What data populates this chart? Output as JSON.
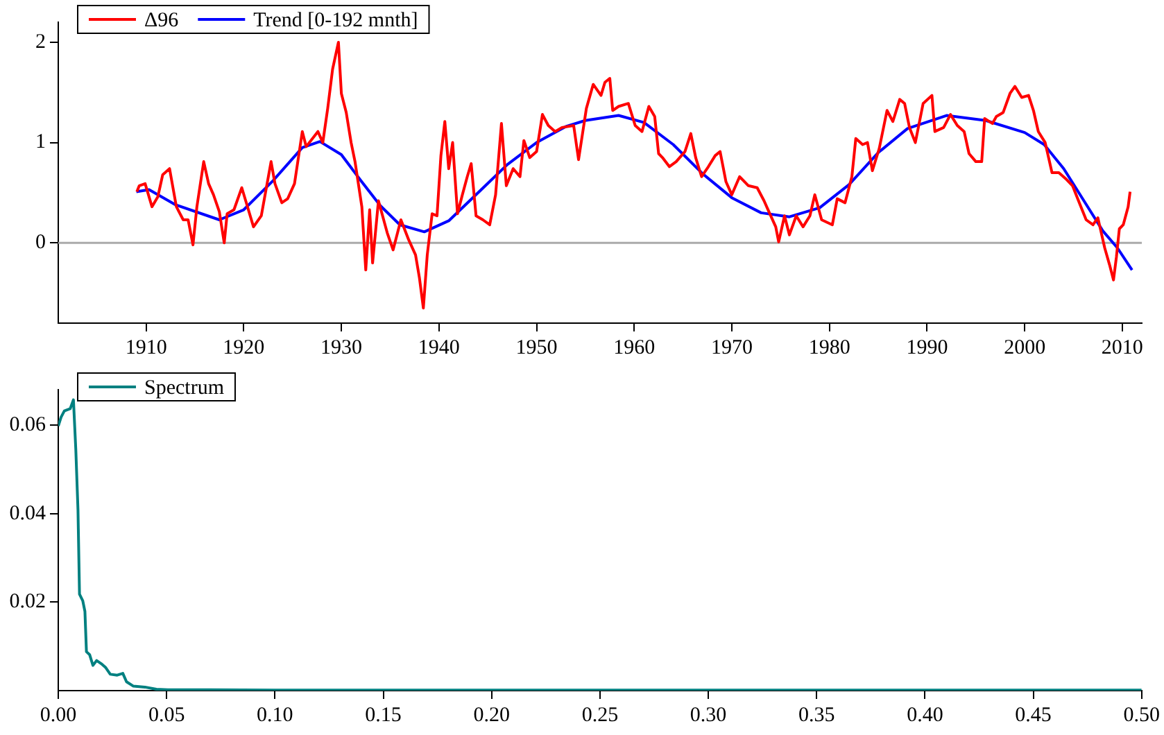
{
  "chart_data": [
    {
      "type": "line",
      "xlim": [
        1901,
        2012
      ],
      "xticks": [
        1910,
        1920,
        1930,
        1940,
        1950,
        1960,
        1970,
        1980,
        1990,
        2000,
        2010
      ],
      "ylim": [
        -0.8,
        2.2
      ],
      "yticks": [
        0,
        1,
        2
      ],
      "grid": false,
      "legend": "top left",
      "marker": "none",
      "ref_lines": [
        {
          "axis": "y",
          "value": 0,
          "color": "#aaaaaa"
        }
      ],
      "series": [
        {
          "name": "Δ96",
          "color": "#ff0000",
          "x": [
            1909.05,
            1909.3,
            1909.9,
            1910.6,
            1911.2,
            1911.7,
            1912.4,
            1913.1,
            1913.8,
            1914.3,
            1914.8,
            1915.2,
            1915.9,
            1916.4,
            1916.9,
            1917.5,
            1918.0,
            1918.3,
            1919.0,
            1919.8,
            1920.2,
            1921.0,
            1921.8,
            1922.8,
            1923.2,
            1923.9,
            1924.5,
            1925.2,
            1926.0,
            1926.4,
            1927.6,
            1928.1,
            1928.6,
            1929.1,
            1929.7,
            1930.0,
            1930.5,
            1931.0,
            1931.4,
            1932.1,
            1932.5,
            1932.9,
            1933.2,
            1933.8,
            1934.7,
            1935.3,
            1936.1,
            1936.9,
            1937.6,
            1938.0,
            1938.4,
            1938.8,
            1939.3,
            1939.8,
            1940.2,
            1940.6,
            1941.0,
            1941.4,
            1941.9,
            1942.4,
            1942.9,
            1943.3,
            1943.8,
            1944.5,
            1945.2,
            1945.8,
            1946.4,
            1946.9,
            1947.6,
            1948.3,
            1948.7,
            1949.3,
            1950.0,
            1950.6,
            1951.2,
            1951.9,
            1952.6,
            1953.8,
            1954.3,
            1955.1,
            1955.8,
            1956.6,
            1957.0,
            1957.5,
            1957.8,
            1958.4,
            1959.4,
            1960.1,
            1960.8,
            1961.5,
            1962.1,
            1962.5,
            1962.9,
            1963.6,
            1964.3,
            1965.2,
            1965.8,
            1966.3,
            1966.9,
            1967.6,
            1968.3,
            1968.8,
            1969.4,
            1970.0,
            1970.8,
            1971.7,
            1972.6,
            1973.3,
            1973.8,
            1974.5,
            1974.8,
            1975.4,
            1975.9,
            1976.6,
            1977.3,
            1978.0,
            1978.5,
            1979.2,
            1980.3,
            1980.8,
            1981.6,
            1982.3,
            1982.7,
            1983.4,
            1983.9,
            1984.4,
            1985.1,
            1985.9,
            1986.5,
            1987.2,
            1987.7,
            1988.2,
            1988.8,
            1989.6,
            1990.5,
            1990.8,
            1991.7,
            1992.4,
            1993.1,
            1993.8,
            1994.3,
            1995.0,
            1995.6,
            1995.9,
            1996.7,
            1997.1,
            1997.8,
            1998.5,
            1999.0,
            1999.7,
            2000.4,
            2000.9,
            2001.4,
            2002.1,
            2002.8,
            2003.5,
            2004.2,
            2004.9,
            2005.6,
            2006.3,
            2007.0,
            2007.5,
            2008.2,
            2008.7,
            2009.1,
            2009.4,
            2009.7,
            2010.1,
            2010.6,
            2010.8
          ],
          "values": [
            0.51,
            0.57,
            0.59,
            0.36,
            0.46,
            0.68,
            0.74,
            0.36,
            0.23,
            0.23,
            -0.02,
            0.36,
            0.81,
            0.59,
            0.48,
            0.31,
            0.0,
            0.29,
            0.33,
            0.55,
            0.42,
            0.16,
            0.27,
            0.81,
            0.59,
            0.4,
            0.44,
            0.59,
            1.11,
            0.96,
            1.11,
            1.0,
            1.34,
            1.73,
            2.0,
            1.49,
            1.3,
            1.0,
            0.81,
            0.36,
            -0.27,
            0.33,
            -0.2,
            0.42,
            0.1,
            -0.07,
            0.23,
            0.03,
            -0.12,
            -0.35,
            -0.65,
            -0.12,
            0.29,
            0.27,
            0.87,
            1.21,
            0.74,
            1.0,
            0.29,
            0.48,
            0.66,
            0.79,
            0.27,
            0.23,
            0.18,
            0.48,
            1.19,
            0.57,
            0.74,
            0.66,
            1.02,
            0.85,
            0.91,
            1.28,
            1.17,
            1.11,
            1.15,
            1.17,
            0.83,
            1.34,
            1.58,
            1.47,
            1.6,
            1.64,
            1.32,
            1.36,
            1.39,
            1.17,
            1.11,
            1.36,
            1.26,
            0.89,
            0.85,
            0.76,
            0.81,
            0.91,
            1.09,
            0.85,
            0.66,
            0.76,
            0.87,
            0.91,
            0.61,
            0.48,
            0.66,
            0.57,
            0.55,
            0.42,
            0.31,
            0.16,
            0.01,
            0.27,
            0.08,
            0.27,
            0.16,
            0.27,
            0.48,
            0.23,
            0.18,
            0.44,
            0.4,
            0.66,
            1.04,
            0.98,
            1.0,
            0.72,
            0.94,
            1.32,
            1.21,
            1.43,
            1.39,
            1.15,
            1.0,
            1.39,
            1.47,
            1.11,
            1.15,
            1.28,
            1.17,
            1.11,
            0.89,
            0.81,
            0.81,
            1.24,
            1.19,
            1.26,
            1.3,
            1.49,
            1.56,
            1.45,
            1.47,
            1.32,
            1.11,
            1.0,
            0.7,
            0.7,
            0.64,
            0.57,
            0.4,
            0.23,
            0.18,
            0.25,
            -0.05,
            -0.22,
            -0.37,
            -0.14,
            0.14,
            0.18,
            0.36,
            0.51
          ]
        },
        {
          "name": "Trend [0-192 mnth]",
          "color": "#0000ff",
          "x": [
            1909,
            1910.3,
            1913,
            1917.5,
            1920,
            1923,
            1926,
            1927.8,
            1930,
            1932,
            1934,
            1936,
            1938.5,
            1941,
            1944,
            1947,
            1950,
            1953,
            1955,
            1958.4,
            1961,
            1964,
            1967,
            1970,
            1973,
            1975.9,
            1979,
            1982,
            1985,
            1988,
            1992,
            1996,
            2000,
            2002,
            2004,
            2006,
            2008,
            2009.5,
            2011
          ],
          "values": [
            0.51,
            0.53,
            0.38,
            0.23,
            0.33,
            0.62,
            0.95,
            1.01,
            0.88,
            0.62,
            0.37,
            0.18,
            0.11,
            0.22,
            0.5,
            0.78,
            1.0,
            1.16,
            1.22,
            1.27,
            1.2,
            0.98,
            0.69,
            0.45,
            0.3,
            0.26,
            0.35,
            0.58,
            0.9,
            1.14,
            1.27,
            1.22,
            1.1,
            0.98,
            0.74,
            0.43,
            0.12,
            -0.05,
            -0.27
          ]
        }
      ]
    },
    {
      "type": "line",
      "xlim": [
        0,
        0.5
      ],
      "xticks": [
        {
          "value": 0,
          "label": "0.00"
        },
        {
          "value": 0.05,
          "label": "0.05"
        },
        {
          "value": 0.1,
          "label": "0.10"
        },
        {
          "value": 0.15,
          "label": "0.15"
        },
        {
          "value": 0.2,
          "label": "0.20"
        },
        {
          "value": 0.25,
          "label": "0.25"
        },
        {
          "value": 0.3,
          "label": "0.30"
        },
        {
          "value": 0.35,
          "label": "0.35"
        },
        {
          "value": 0.4,
          "label": "0.40"
        },
        {
          "value": 0.45,
          "label": "0.45"
        },
        {
          "value": 0.5,
          "label": "0.50"
        }
      ],
      "ylim": [
        0,
        0.068
      ],
      "yticks": [
        0.02,
        0.04,
        0.06
      ],
      "grid": false,
      "legend": "top left",
      "marker": "none",
      "series": [
        {
          "name": "Spectrum",
          "color": "#008080",
          "x": [
            0,
            0.0013,
            0.0028,
            0.0055,
            0.007,
            0.0081,
            0.0091,
            0.0098,
            0.0113,
            0.0123,
            0.013,
            0.0145,
            0.016,
            0.0177,
            0.0198,
            0.0219,
            0.024,
            0.0272,
            0.0298,
            0.0315,
            0.0347,
            0.04,
            0.0453,
            0.0506,
            0.07,
            0.1,
            0.2,
            0.3,
            0.4,
            0.5
          ],
          "values": [
            0.0598,
            0.0618,
            0.0632,
            0.0637,
            0.0657,
            0.0544,
            0.0408,
            0.0218,
            0.0203,
            0.0179,
            0.0088,
            0.0081,
            0.0057,
            0.0068,
            0.0061,
            0.0052,
            0.0037,
            0.0035,
            0.0039,
            0.002,
            0.001,
            0.0008,
            0.0003,
            0.0002,
            0.0002,
            0.0001,
            0.0001,
            0.0001,
            0.0001,
            0.0001
          ]
        }
      ]
    }
  ]
}
